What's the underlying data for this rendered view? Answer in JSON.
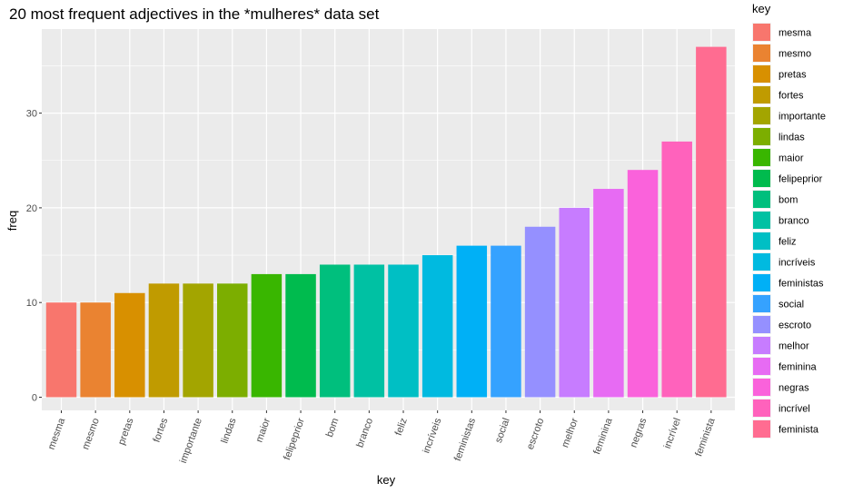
{
  "chart_data": {
    "type": "bar",
    "title": "20 most frequent adjectives in the *mulheres* data set",
    "xlabel": "key",
    "ylabel": "freq",
    "ylim": [
      0,
      39
    ],
    "yticks": [
      0,
      10,
      20,
      30
    ],
    "grid": true,
    "legend_position": "right",
    "legend_title": "key",
    "categories": [
      "mesma",
      "mesmo",
      "pretas",
      "fortes",
      "importante",
      "lindas",
      "maior",
      "felipeprior",
      "bom",
      "branco",
      "feliz",
      "incríveis",
      "feministas",
      "social",
      "escroto",
      "melhor",
      "feminina",
      "negras",
      "incrível",
      "feminista"
    ],
    "values": [
      10,
      10,
      11,
      12,
      12,
      12,
      13,
      13,
      14,
      14,
      14,
      15,
      16,
      16,
      18,
      20,
      22,
      24,
      27,
      37
    ],
    "colors": [
      "#F8766D",
      "#EA8331",
      "#D89000",
      "#C09B00",
      "#A3A500",
      "#7CAE00",
      "#39B600",
      "#00BB4E",
      "#00BF7D",
      "#00C1A3",
      "#00BFC4",
      "#00BAE0",
      "#00B0F6",
      "#35A2FF",
      "#9590FF",
      "#C77CFF",
      "#E76BF3",
      "#FA62DB",
      "#FF62BC",
      "#FF6C91"
    ]
  }
}
